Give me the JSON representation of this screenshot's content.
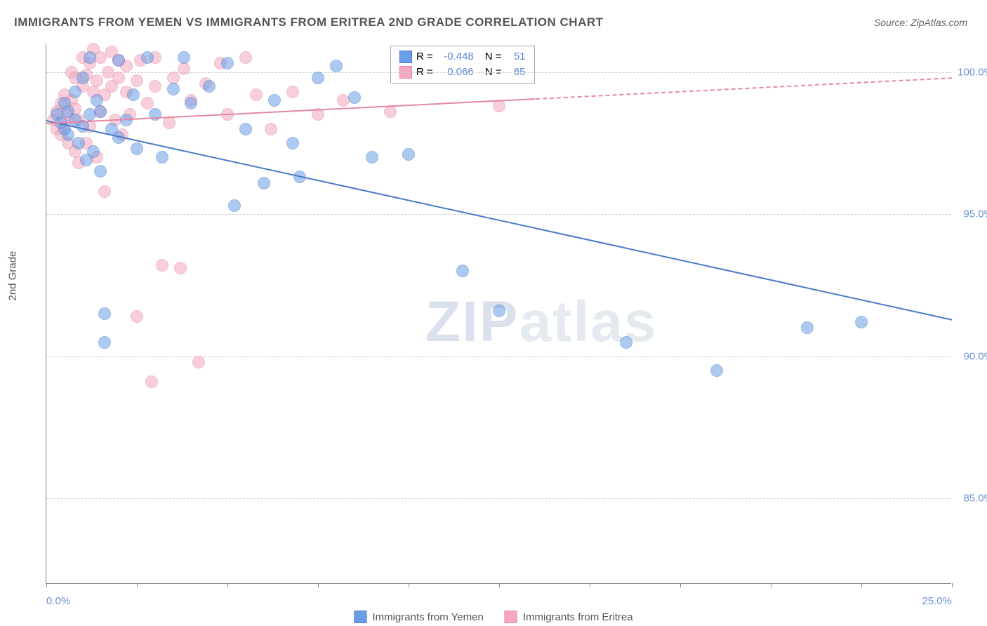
{
  "title": "IMMIGRANTS FROM YEMEN VS IMMIGRANTS FROM ERITREA 2ND GRADE CORRELATION CHART",
  "source": "Source: ZipAtlas.com",
  "y_axis_label": "2nd Grade",
  "watermark_zip": "ZIP",
  "watermark_atlas": "atlas",
  "chart": {
    "type": "scatter",
    "xlim": [
      0,
      25
    ],
    "ylim": [
      82,
      101
    ],
    "x_ticks": [
      0,
      2.5,
      5,
      7.5,
      10,
      12.5,
      15,
      17.5,
      20,
      22.5,
      25
    ],
    "x_tick_labels": {
      "0": "0.0%",
      "25": "25.0%"
    },
    "y_ticks": [
      85,
      90,
      95,
      100
    ],
    "y_tick_labels": [
      "85.0%",
      "90.0%",
      "95.0%",
      "100.0%"
    ],
    "background_color": "#ffffff",
    "grid_color": "#cccccc",
    "point_radius": 9,
    "point_opacity": 0.55
  },
  "series": {
    "yemen": {
      "label": "Immigrants from Yemen",
      "color": "#6a9de8",
      "border": "#4a7bc8",
      "r_label": "R =",
      "r_value": "-0.448",
      "n_label": "N =",
      "n_value": "51",
      "trend": {
        "x1": 0,
        "y1": 98.3,
        "x2": 25,
        "y2": 91.3,
        "dashed": false
      },
      "points": [
        [
          0.3,
          98.5
        ],
        [
          0.4,
          98.2
        ],
        [
          0.5,
          98.0
        ],
        [
          0.5,
          98.9
        ],
        [
          0.6,
          97.8
        ],
        [
          0.6,
          98.6
        ],
        [
          0.8,
          98.3
        ],
        [
          0.8,
          99.3
        ],
        [
          0.9,
          97.5
        ],
        [
          1.0,
          98.1
        ],
        [
          1.0,
          99.8
        ],
        [
          1.1,
          96.9
        ],
        [
          1.2,
          98.5
        ],
        [
          1.2,
          100.5
        ],
        [
          1.3,
          97.2
        ],
        [
          1.4,
          99.0
        ],
        [
          1.5,
          98.6
        ],
        [
          1.5,
          96.5
        ],
        [
          1.6,
          91.5
        ],
        [
          1.6,
          90.5
        ],
        [
          1.8,
          98.0
        ],
        [
          2.0,
          100.4
        ],
        [
          2.0,
          97.7
        ],
        [
          2.2,
          98.3
        ],
        [
          2.4,
          99.2
        ],
        [
          2.5,
          97.3
        ],
        [
          2.8,
          100.5
        ],
        [
          3.0,
          98.5
        ],
        [
          3.2,
          97.0
        ],
        [
          3.5,
          99.4
        ],
        [
          3.8,
          100.5
        ],
        [
          4.0,
          98.9
        ],
        [
          4.5,
          99.5
        ],
        [
          5.0,
          100.3
        ],
        [
          5.2,
          95.3
        ],
        [
          5.5,
          98.0
        ],
        [
          6.0,
          96.1
        ],
        [
          6.3,
          99.0
        ],
        [
          6.8,
          97.5
        ],
        [
          7.0,
          96.3
        ],
        [
          7.5,
          99.8
        ],
        [
          8.0,
          100.2
        ],
        [
          8.5,
          99.1
        ],
        [
          9.0,
          97.0
        ],
        [
          10.0,
          97.1
        ],
        [
          11.5,
          93.0
        ],
        [
          12.5,
          91.6
        ],
        [
          16.0,
          90.5
        ],
        [
          18.5,
          89.5
        ],
        [
          21.0,
          91.0
        ],
        [
          22.5,
          91.2
        ]
      ]
    },
    "eritrea": {
      "label": "Immigrants from Eritrea",
      "color": "#f4a7bd",
      "border": "#e687a3",
      "r_label": "R =",
      "r_value": "0.066",
      "n_label": "N =",
      "n_value": "65",
      "trend": {
        "x1": 0,
        "y1": 98.2,
        "x2": 25,
        "y2": 99.8,
        "dashed_from": 13.5
      },
      "points": [
        [
          0.2,
          98.3
        ],
        [
          0.3,
          98.0
        ],
        [
          0.3,
          98.6
        ],
        [
          0.4,
          97.8
        ],
        [
          0.4,
          98.9
        ],
        [
          0.5,
          98.2
        ],
        [
          0.5,
          99.2
        ],
        [
          0.6,
          97.5
        ],
        [
          0.6,
          98.5
        ],
        [
          0.7,
          99.0
        ],
        [
          0.7,
          100.0
        ],
        [
          0.8,
          97.2
        ],
        [
          0.8,
          98.7
        ],
        [
          0.8,
          99.8
        ],
        [
          0.9,
          96.8
        ],
        [
          0.9,
          98.3
        ],
        [
          1.0,
          99.5
        ],
        [
          1.0,
          100.5
        ],
        [
          1.1,
          97.5
        ],
        [
          1.1,
          99.9
        ],
        [
          1.2,
          98.1
        ],
        [
          1.2,
          100.3
        ],
        [
          1.3,
          99.3
        ],
        [
          1.3,
          100.8
        ],
        [
          1.4,
          97.0
        ],
        [
          1.4,
          99.7
        ],
        [
          1.5,
          98.6
        ],
        [
          1.5,
          100.5
        ],
        [
          1.6,
          99.2
        ],
        [
          1.6,
          95.8
        ],
        [
          1.7,
          100.0
        ],
        [
          1.8,
          99.5
        ],
        [
          1.8,
          100.7
        ],
        [
          1.9,
          98.3
        ],
        [
          2.0,
          99.8
        ],
        [
          2.0,
          100.4
        ],
        [
          2.1,
          97.8
        ],
        [
          2.2,
          99.3
        ],
        [
          2.2,
          100.2
        ],
        [
          2.3,
          98.5
        ],
        [
          2.5,
          91.4
        ],
        [
          2.5,
          99.7
        ],
        [
          2.6,
          100.4
        ],
        [
          2.8,
          98.9
        ],
        [
          2.9,
          89.1
        ],
        [
          3.0,
          99.5
        ],
        [
          3.0,
          100.5
        ],
        [
          3.2,
          93.2
        ],
        [
          3.4,
          98.2
        ],
        [
          3.5,
          99.8
        ],
        [
          3.7,
          93.1
        ],
        [
          3.8,
          100.1
        ],
        [
          4.0,
          99.0
        ],
        [
          4.2,
          89.8
        ],
        [
          4.4,
          99.6
        ],
        [
          4.8,
          100.3
        ],
        [
          5.0,
          98.5
        ],
        [
          5.5,
          100.5
        ],
        [
          5.8,
          99.2
        ],
        [
          6.2,
          98.0
        ],
        [
          6.8,
          99.3
        ],
        [
          7.5,
          98.5
        ],
        [
          8.2,
          99.0
        ],
        [
          9.5,
          98.6
        ],
        [
          12.5,
          98.8
        ]
      ]
    }
  }
}
